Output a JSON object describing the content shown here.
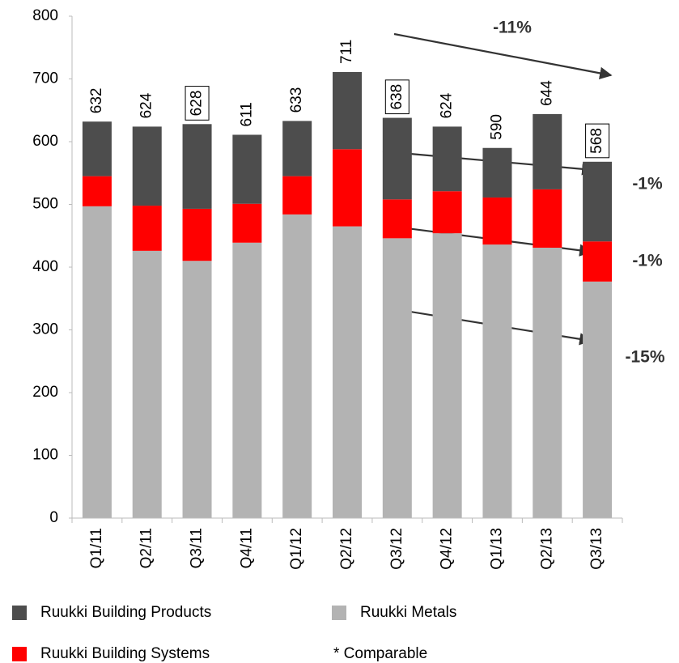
{
  "chart_data": {
    "type": "stacked_bar",
    "categories": [
      "Q1/11",
      "Q2/11",
      "Q3/11",
      "Q4/11",
      "Q1/12",
      "Q2/12",
      "Q3/12",
      "Q4/12",
      "Q1/13",
      "Q2/13",
      "Q3/13"
    ],
    "series": [
      {
        "name": "Ruukki Metals",
        "color": "#b3b3b3",
        "values": [
          497,
          426,
          410,
          439,
          484,
          465,
          446,
          454,
          436,
          431,
          377
        ]
      },
      {
        "name": "Ruukki Building Systems",
        "color": "#ff0000",
        "values": [
          48,
          72,
          83,
          62,
          61,
          123,
          62,
          67,
          75,
          93,
          64
        ]
      },
      {
        "name": "Ruukki Building Products",
        "color": "#4d4d4d",
        "values": [
          87,
          126,
          135,
          110,
          88,
          123,
          130,
          103,
          79,
          120,
          127
        ]
      }
    ],
    "total_labels": [
      632,
      624,
      628,
      611,
      633,
      711,
      638,
      624,
      590,
      644,
      568
    ],
    "boxed_totals": [
      false,
      false,
      true,
      false,
      false,
      false,
      true,
      false,
      false,
      false,
      true
    ],
    "ylim": [
      0,
      800
    ],
    "yticks": [
      0,
      100,
      200,
      300,
      400,
      500,
      600,
      700,
      800
    ],
    "grid": false,
    "annotations": [
      "-11%",
      "-1%",
      "-1%",
      "-15%"
    ],
    "footnote": "* Comparable"
  }
}
